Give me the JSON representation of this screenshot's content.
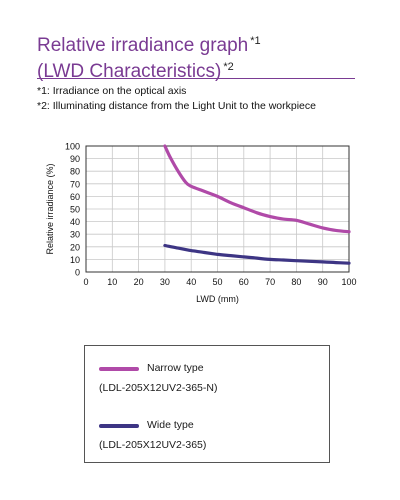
{
  "header": {
    "title_line1": "Relative irradiance graph",
    "title_line1_mark": "*1",
    "title_line2": "(LWD Characteristics)",
    "title_line2_mark": "*2"
  },
  "notes": [
    "*1: Irradiance on the optical axis",
    "*2: Illuminating distance from the Light Unit to the workpiece"
  ],
  "legend": {
    "entries": [
      {
        "name": "Narrow type",
        "model": "(LDL-205X12UV2-365-N)",
        "color": "#b04aa8"
      },
      {
        "name": "Wide type",
        "model": "(LDL-205X12UV2-365)",
        "color": "#3d3584"
      }
    ]
  },
  "chart_data": {
    "type": "line",
    "xlabel": "LWD (mm)",
    "ylabel": "Relative irradiance (%)",
    "xlim": [
      0,
      100
    ],
    "ylim": [
      0,
      100
    ],
    "xticks": [
      0,
      10,
      20,
      30,
      40,
      50,
      60,
      70,
      80,
      90,
      100
    ],
    "yticks": [
      0,
      10,
      20,
      30,
      40,
      50,
      60,
      70,
      80,
      90,
      100
    ],
    "grid": true,
    "series": [
      {
        "name": "Narrow type",
        "color": "#b04aa8",
        "x": [
          30,
          32,
          35,
          38,
          40,
          45,
          50,
          55,
          60,
          65,
          70,
          75,
          80,
          85,
          90,
          95,
          100
        ],
        "y": [
          100,
          91,
          80,
          71,
          68,
          64,
          60,
          55,
          51,
          47,
          44,
          42,
          41,
          38,
          35,
          33,
          32
        ]
      },
      {
        "name": "Wide type",
        "color": "#3d3584",
        "x": [
          30,
          35,
          40,
          45,
          50,
          55,
          60,
          65,
          70,
          75,
          80,
          85,
          90,
          95,
          100
        ],
        "y": [
          21,
          19,
          17,
          15.5,
          14,
          13,
          12,
          11,
          10,
          9.5,
          9,
          8.5,
          8,
          7.5,
          7
        ]
      }
    ]
  }
}
